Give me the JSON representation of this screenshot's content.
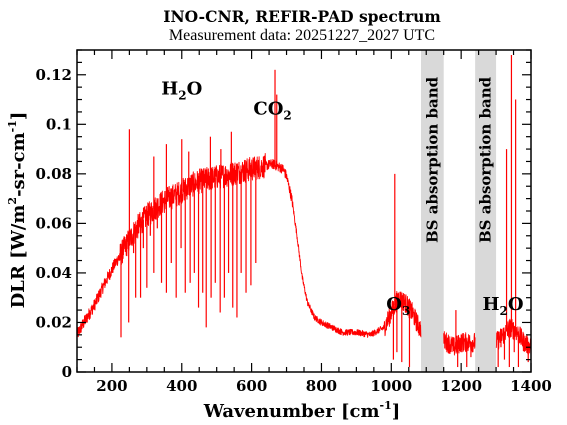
{
  "chart_data": {
    "type": "line",
    "title": "INO-CNR, REFIR-PAD spectrum",
    "subtitle": "Measurement data: 20251227_2027 UTC",
    "xlabel": {
      "main": "Wavenumber [cm",
      "sup": "-1",
      "end": "]"
    },
    "ylabel": {
      "a": "DLR [W/m",
      "sup1": "2",
      "b": "-sr-cm",
      "sup2": "-1",
      "c": "]"
    },
    "xlim": [
      100,
      1400
    ],
    "ylim": [
      0,
      0.13
    ],
    "xticks": [
      "200",
      "400",
      "600",
      "800",
      "1000",
      "1200",
      "1400"
    ],
    "yticks": [
      "0",
      "0.02",
      "0.04",
      "0.06",
      "0.08",
      "0.1",
      "0.12"
    ],
    "xtick_values": [
      200,
      400,
      600,
      800,
      1000,
      1200,
      1400
    ],
    "ytick_values": [
      0,
      0.02,
      0.04,
      0.06,
      0.08,
      0.1,
      0.12
    ],
    "series_color": "#ff0000",
    "band_color": "#d9d9d9",
    "bands": [
      {
        "x0": 1085,
        "x1": 1150,
        "label": "BS absorption band"
      },
      {
        "x0": 1240,
        "x1": 1300,
        "label": "BS absorption band"
      }
    ],
    "annotations": [
      {
        "main": "H",
        "sub": "2",
        "end": "O",
        "x": 400,
        "y": 0.112
      },
      {
        "main": "CO",
        "sub": "2",
        "end": "",
        "x": 660,
        "y": 0.104
      },
      {
        "main": "O",
        "sub": "3",
        "end": "",
        "x": 1020,
        "y": 0.025
      },
      {
        "main": "H",
        "sub": "2",
        "end": "O",
        "x": 1320,
        "y": 0.025
      }
    ],
    "envelope": {
      "x": [
        100,
        120,
        150,
        180,
        210,
        240,
        270,
        300,
        330,
        360,
        390,
        420,
        450,
        480,
        510,
        540,
        570,
        600,
        630,
        660,
        690,
        700,
        715,
        730,
        745,
        760,
        780,
        800,
        830,
        860,
        900,
        940,
        980,
        1000,
        1020,
        1040,
        1060,
        1080,
        1160,
        1180,
        1200,
        1220,
        1300,
        1320,
        1340,
        1360,
        1380,
        1400
      ],
      "y": [
        0.015,
        0.02,
        0.027,
        0.036,
        0.044,
        0.051,
        0.058,
        0.063,
        0.067,
        0.07,
        0.072,
        0.075,
        0.077,
        0.078,
        0.079,
        0.08,
        0.081,
        0.082,
        0.083,
        0.084,
        0.082,
        0.079,
        0.07,
        0.055,
        0.038,
        0.028,
        0.022,
        0.02,
        0.018,
        0.016,
        0.016,
        0.015,
        0.018,
        0.024,
        0.03,
        0.028,
        0.024,
        0.018,
        0.012,
        0.01,
        0.012,
        0.012,
        0.012,
        0.015,
        0.018,
        0.016,
        0.012,
        0.01
      ]
    },
    "dips": [
      [
        226,
        0.014
      ],
      [
        248,
        0.02
      ],
      [
        262,
        0.048
      ],
      [
        268,
        0.03
      ],
      [
        276,
        0.056
      ],
      [
        282,
        0.03
      ],
      [
        290,
        0.05
      ],
      [
        300,
        0.034
      ],
      [
        310,
        0.055
      ],
      [
        320,
        0.04
      ],
      [
        330,
        0.058
      ],
      [
        342,
        0.036
      ],
      [
        356,
        0.032
      ],
      [
        370,
        0.044
      ],
      [
        384,
        0.03
      ],
      [
        398,
        0.05
      ],
      [
        410,
        0.032
      ],
      [
        424,
        0.036
      ],
      [
        436,
        0.04
      ],
      [
        448,
        0.026
      ],
      [
        460,
        0.032
      ],
      [
        470,
        0.018
      ],
      [
        484,
        0.03
      ],
      [
        496,
        0.036
      ],
      [
        510,
        0.024
      ],
      [
        522,
        0.03
      ],
      [
        534,
        0.04
      ],
      [
        546,
        0.026
      ],
      [
        558,
        0.022
      ],
      [
        570,
        0.04
      ],
      [
        584,
        0.032
      ],
      [
        598,
        0.035
      ],
      [
        612,
        0.044
      ],
      [
        1006,
        0.005
      ],
      [
        1016,
        0.008
      ],
      [
        1030,
        0.004
      ],
      [
        1052,
        0.002
      ],
      [
        1190,
        0.002
      ],
      [
        1202,
        0.008
      ],
      [
        1216,
        0.002
      ],
      [
        1228,
        0.006
      ],
      [
        1306,
        0.002
      ],
      [
        1314,
        0.01
      ],
      [
        1324,
        0.005
      ],
      [
        1338,
        0.002
      ],
      [
        1352,
        0.008
      ],
      [
        1364,
        0.002
      ],
      [
        1378,
        0.01
      ],
      [
        1392,
        0.004
      ]
    ],
    "peaks": [
      [
        250,
        0.098
      ],
      [
        320,
        0.087
      ],
      [
        356,
        0.092
      ],
      [
        400,
        0.094
      ],
      [
        420,
        0.089
      ],
      [
        482,
        0.095
      ],
      [
        512,
        0.09
      ],
      [
        542,
        0.097
      ],
      [
        667,
        0.122
      ],
      [
        672,
        0.112
      ],
      [
        1010,
        0.08
      ],
      [
        1185,
        0.025
      ],
      [
        1330,
        0.09
      ],
      [
        1344,
        0.128
      ],
      [
        1356,
        0.11
      ]
    ]
  }
}
